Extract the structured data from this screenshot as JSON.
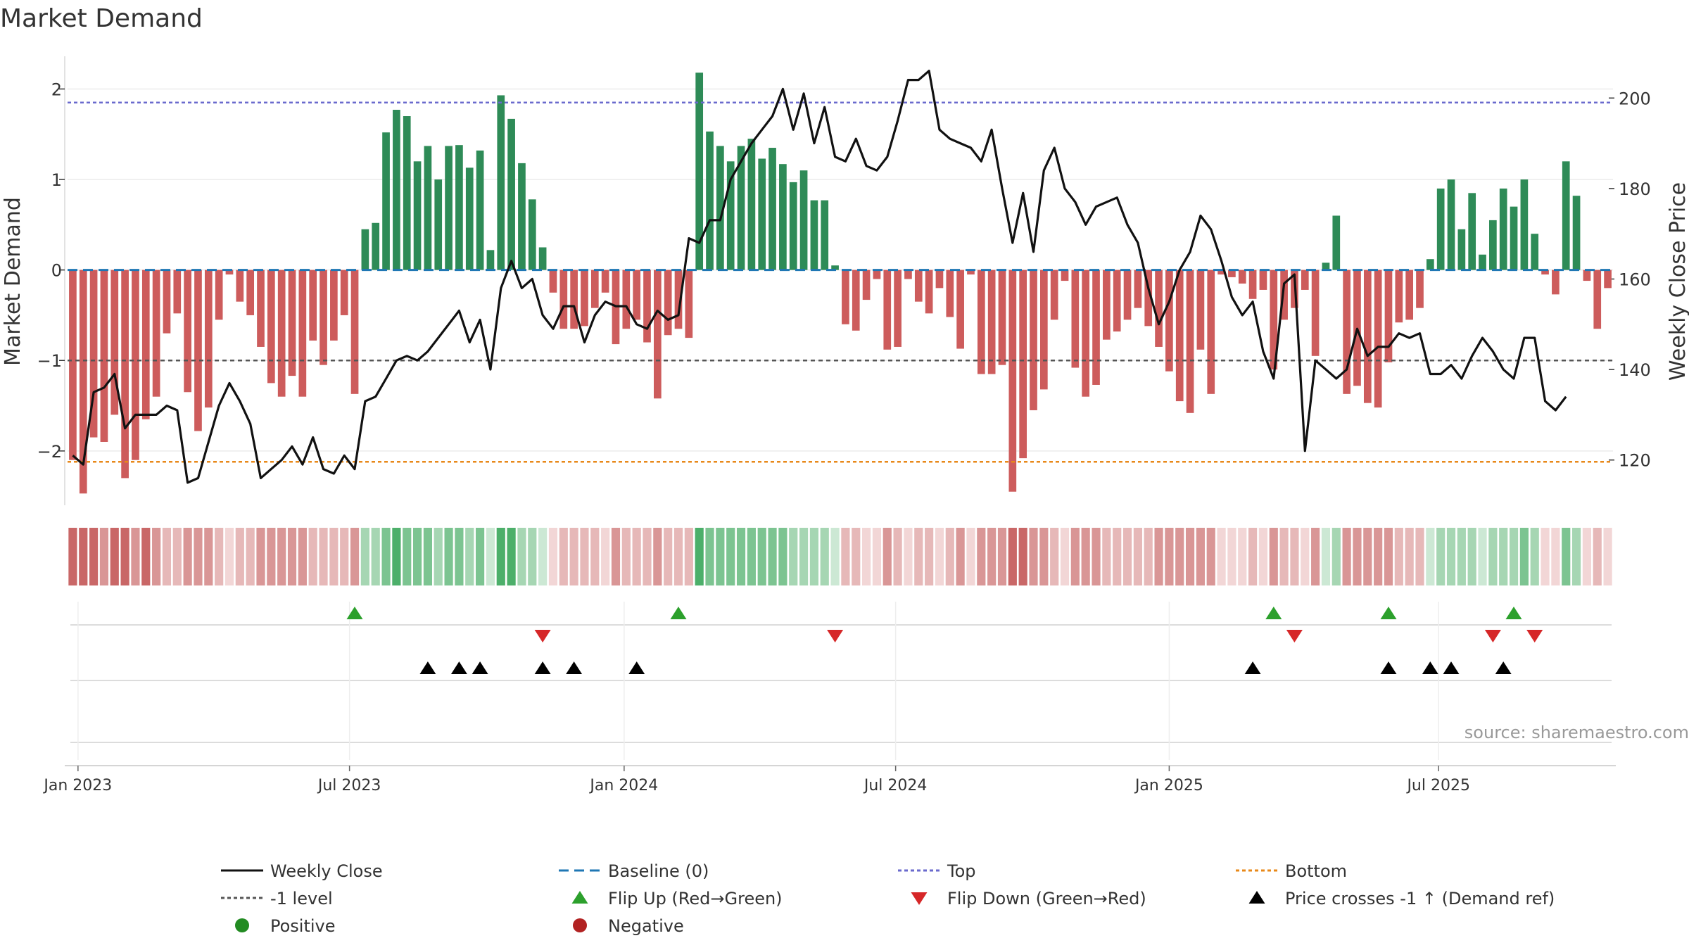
{
  "chart_data": {
    "type": "bar+line",
    "title": "Market Demand",
    "ylabel_left": "Market Demand",
    "ylabel_right": "Weekly Close Price",
    "ylim_left": [
      -2.6,
      2.4
    ],
    "ylim_right": [
      110,
      210
    ],
    "yticks_left": [
      -2,
      -1,
      0,
      1,
      2
    ],
    "ytick_labels_left": [
      "−2",
      "−1",
      "0",
      "1",
      "2"
    ],
    "yticks_right": [
      120,
      140,
      160,
      180,
      200
    ],
    "ytick_labels_right": [
      "120",
      "140",
      "160",
      "180",
      "200"
    ],
    "top_level": 1.85,
    "bottom_level": -2.12,
    "minus_one_level": -1,
    "baseline": 0,
    "date_ticks": [
      {
        "label": "Jan 2023",
        "week": 1.5
      },
      {
        "label": "Jul 2023",
        "week": 27.5
      },
      {
        "label": "Jan 2024",
        "week": 53.8
      },
      {
        "label": "Jul 2024",
        "week": 79.8
      },
      {
        "label": "Jan 2025",
        "week": 106
      },
      {
        "label": "Jul 2025",
        "week": 131.8
      }
    ],
    "demand": [
      -2.1,
      -2.47,
      -1.85,
      -1.9,
      -1.6,
      -2.3,
      -2.1,
      -1.65,
      -1.4,
      -0.7,
      -0.48,
      -1.35,
      -1.78,
      -1.52,
      -0.55,
      -0.05,
      -0.35,
      -0.5,
      -0.85,
      -1.25,
      -1.4,
      -1.17,
      -1.4,
      -0.78,
      -1.05,
      -0.78,
      -0.5,
      -1.37,
      0.45,
      0.52,
      1.52,
      1.77,
      1.7,
      1.2,
      1.37,
      1.0,
      1.37,
      1.38,
      1.13,
      1.32,
      0.22,
      1.93,
      1.67,
      1.18,
      0.78,
      0.25,
      -0.25,
      -0.65,
      -0.65,
      -0.62,
      -0.42,
      -0.25,
      -0.82,
      -0.65,
      -0.55,
      -0.8,
      -1.42,
      -0.72,
      -0.65,
      -0.75,
      2.18,
      1.53,
      1.37,
      1.2,
      1.37,
      1.45,
      1.23,
      1.35,
      1.17,
      0.97,
      1.1,
      0.77,
      0.77,
      0.05,
      -0.6,
      -0.67,
      -0.33,
      -0.1,
      -0.88,
      -0.85,
      -0.1,
      -0.35,
      -0.48,
      -0.2,
      -0.52,
      -0.87,
      -0.05,
      -1.15,
      -1.15,
      -1.05,
      -2.45,
      -2.08,
      -1.55,
      -1.32,
      -0.55,
      -0.12,
      -1.08,
      -1.4,
      -1.27,
      -0.77,
      -0.68,
      -0.55,
      -0.42,
      -0.62,
      -0.85,
      -1.12,
      -1.45,
      -1.58,
      -0.88,
      -1.37,
      -0.05,
      -0.08,
      -0.15,
      -0.32,
      -0.22,
      -1.1,
      -0.55,
      -0.42,
      -0.22,
      -0.95,
      0.08,
      0.6,
      -1.37,
      -1.28,
      -1.47,
      -1.52,
      -1.02,
      -0.58,
      -0.55,
      -0.42,
      0.12,
      0.9,
      1.0,
      0.45,
      0.85,
      0.17,
      0.55,
      0.9,
      0.7,
      1.0,
      0.4,
      -0.05,
      -0.27,
      1.2,
      0.82,
      -0.12,
      -0.65,
      -0.2
    ],
    "close": [
      121,
      119,
      135,
      136,
      139,
      127,
      130,
      130,
      130,
      132,
      131,
      115,
      116,
      124,
      132,
      137,
      133,
      128,
      116,
      118,
      120,
      123,
      119,
      125,
      118,
      117,
      121,
      118,
      133,
      134,
      138,
      142,
      143,
      142,
      144,
      147,
      150,
      153,
      146,
      151,
      140,
      158,
      164,
      158,
      160,
      152,
      149,
      154,
      154,
      146,
      152,
      155,
      154,
      154,
      150,
      149,
      153,
      151,
      152,
      169,
      168,
      173,
      173,
      182,
      186,
      190,
      193,
      196,
      202,
      193,
      201,
      190,
      198,
      187,
      186,
      191,
      185,
      184,
      187,
      195,
      204,
      204,
      206,
      193,
      191,
      190,
      189,
      186,
      193,
      180,
      168,
      179,
      166,
      184,
      189,
      180,
      177,
      172,
      176,
      177,
      178,
      172,
      168,
      158,
      150,
      155,
      162,
      166,
      174,
      171,
      164,
      156,
      152,
      155,
      144,
      138,
      159,
      161,
      122,
      142,
      140,
      138,
      140,
      149,
      143,
      145,
      145,
      148,
      147,
      148,
      139,
      139,
      141,
      138,
      143,
      147,
      144,
      140,
      138,
      147,
      147,
      133,
      131,
      134
    ],
    "color_strip_bands": [
      3,
      3,
      3,
      2,
      3,
      3,
      2,
      3,
      2,
      1,
      1,
      2,
      2,
      2,
      1,
      0,
      1,
      1,
      2,
      2,
      2,
      2,
      2,
      1,
      1,
      1,
      1,
      2,
      1,
      1,
      2,
      3,
      2,
      2,
      2,
      1,
      2,
      2,
      1,
      2,
      0,
      3,
      3,
      1,
      1,
      0,
      0,
      1,
      1,
      1,
      1,
      0,
      2,
      1,
      1,
      1,
      2,
      1,
      1,
      1,
      3,
      2,
      2,
      2,
      2,
      2,
      2,
      2,
      2,
      1,
      1,
      1,
      1,
      0,
      1,
      1,
      0,
      0,
      2,
      1,
      0,
      1,
      1,
      0,
      1,
      2,
      0,
      2,
      2,
      2,
      3,
      3,
      2,
      2,
      1,
      0,
      2,
      2,
      2,
      1,
      1,
      1,
      1,
      1,
      2,
      2,
      2,
      2,
      2,
      2,
      0,
      0,
      0,
      1,
      0,
      2,
      1,
      1,
      0,
      2,
      0,
      1,
      2,
      2,
      2,
      2,
      2,
      1,
      1,
      1,
      0,
      1,
      1,
      1,
      1,
      0,
      1,
      1,
      1,
      2,
      1,
      0,
      0,
      2,
      1,
      0,
      1,
      0
    ],
    "flip_up_weeks": [
      28,
      59,
      116,
      127,
      139
    ],
    "flip_down_weeks": [
      46,
      74,
      118,
      137,
      141
    ],
    "price_cross_weeks": [
      35,
      38,
      40,
      46,
      49,
      55,
      114,
      127,
      131,
      133,
      138
    ],
    "source": "source: sharemaestro.com",
    "colors": {
      "positive_bar": "#2e8b57",
      "negative_bar": "#cd5c5c",
      "close_line": "#111111",
      "baseline": "#1f77b4",
      "top": "#6a6acd",
      "bottom": "#e8891a",
      "minus_one": "#555555",
      "flip_up": "#2ca02c",
      "flip_down": "#d62728",
      "cross": "#000000",
      "positive_dot": "#228b22",
      "negative_dot": "#b22222"
    },
    "legend": [
      {
        "label": "Weekly Close",
        "symbol": "solid-line",
        "color": "#111111"
      },
      {
        "label": "Baseline (0)",
        "symbol": "dashed-line",
        "color": "#1f77b4"
      },
      {
        "label": "Top",
        "symbol": "dotted-line",
        "color": "#6a6acd"
      },
      {
        "label": "Bottom",
        "symbol": "dotted-line",
        "color": "#e8891a"
      },
      {
        "label": "-1 level",
        "symbol": "dotted-line",
        "color": "#555555"
      },
      {
        "label": "Flip Up (Red→Green)",
        "symbol": "triangle-up",
        "color": "#2ca02c"
      },
      {
        "label": "Flip Down (Green→Red)",
        "symbol": "triangle-down",
        "color": "#d62728"
      },
      {
        "label": "Price crosses -1 ↑ (Demand ref)",
        "symbol": "triangle-up",
        "color": "#000000"
      },
      {
        "label": "Positive",
        "symbol": "dot",
        "color": "#228b22"
      },
      {
        "label": "Negative",
        "symbol": "dot",
        "color": "#b22222"
      }
    ]
  }
}
